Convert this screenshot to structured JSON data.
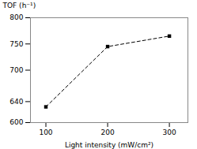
{
  "chart_data": {
    "type": "line",
    "x": [
      100,
      200,
      300
    ],
    "values": [
      630,
      745,
      765
    ],
    "xlabel": "Light intensity (mW/cm²)",
    "ylabel": "TOF (h⁻¹)",
    "xlim": [
      75,
      330
    ],
    "ylim": [
      600,
      800
    ],
    "xticks": [
      100,
      200,
      300
    ],
    "yticks": [
      600,
      640,
      700,
      750,
      800
    ],
    "marker": "square",
    "line_style": "dashed"
  }
}
